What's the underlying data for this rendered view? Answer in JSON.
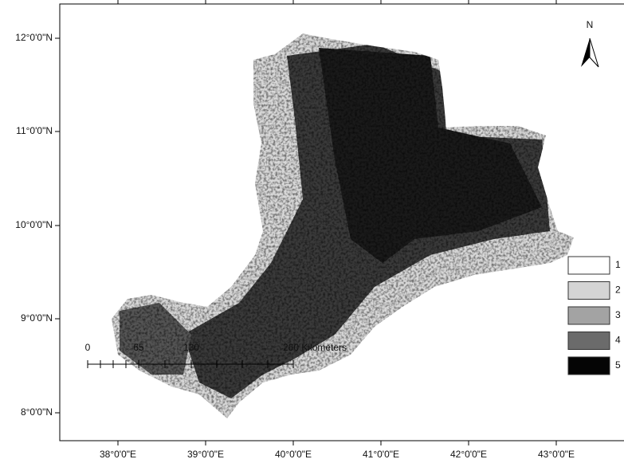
{
  "map": {
    "latitude_labels": [
      "12°0'0\"N",
      "11°0'0\"N",
      "10°0'0\"N",
      "9°0'0\"N",
      "8°0'0\"N"
    ],
    "longitude_labels": [
      "38°0'0\"E",
      "39°0'0\"E",
      "40°0'0\"E",
      "41°0'0\"E",
      "42°0'0\"E",
      "43°0'0\"E"
    ],
    "north_arrow": "N",
    "scale_bar": {
      "labels": [
        "0",
        "65",
        "130",
        "260 Kilometers"
      ]
    },
    "legend": {
      "items": [
        {
          "label": "1",
          "color": "#ffffff"
        },
        {
          "label": "2",
          "color": "#d4d4d4"
        },
        {
          "label": "3",
          "color": "#a3a3a3"
        },
        {
          "label": "4",
          "color": "#6b6b6b"
        },
        {
          "label": "5",
          "color": "#050505"
        }
      ]
    }
  }
}
